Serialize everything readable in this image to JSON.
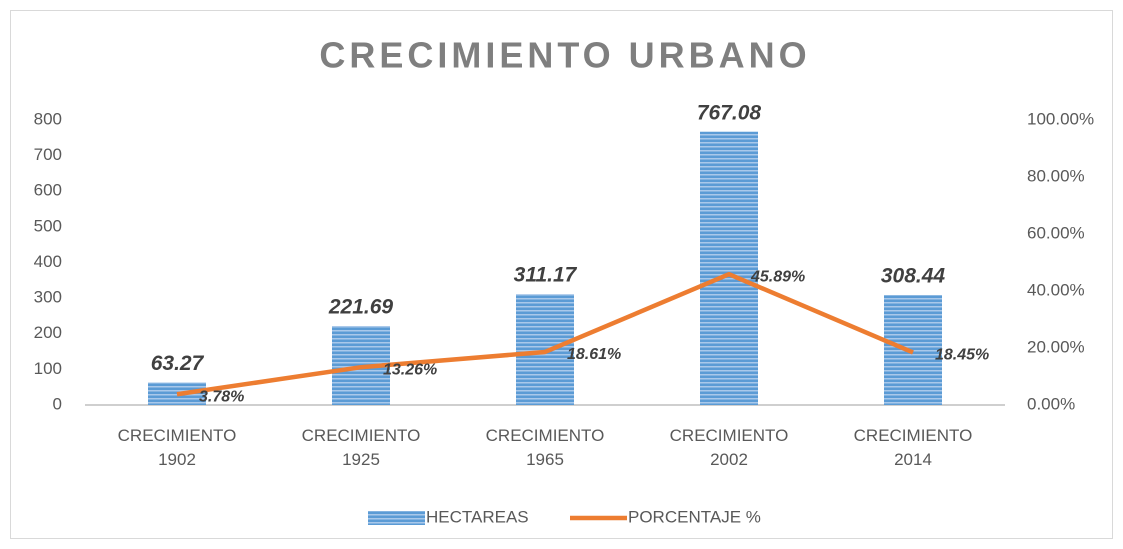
{
  "chart_data": {
    "type": "bar-line",
    "title": "CRECIMIENTO URBANO",
    "categories": [
      "CRECIMIENTO 1902",
      "CRECIMIENTO 1925",
      "CRECIMIENTO 1965",
      "CRECIMIENTO 2002",
      "CRECIMIENTO 2014"
    ],
    "series": [
      {
        "name": "HECTAREAS",
        "type": "bar",
        "color": "#5b9bd5",
        "values": [
          63.27,
          221.69,
          311.17,
          767.08,
          308.44
        ]
      },
      {
        "name": "PORCENTAJE %",
        "type": "line",
        "axis": "y2",
        "color": "#ed7d31",
        "values": [
          3.78,
          13.26,
          18.61,
          45.89,
          18.45
        ],
        "value_labels": [
          "3.78%",
          "13.26%",
          "18.61%",
          "45.89%",
          "18.45%"
        ]
      }
    ],
    "ylim": [
      0,
      800
    ],
    "yticks": [
      0,
      100,
      200,
      300,
      400,
      500,
      600,
      700,
      800
    ],
    "y2lim": [
      0,
      100
    ],
    "y2ticks": [
      {
        "value": 0,
        "label": "0.00%"
      },
      {
        "value": 20,
        "label": "20.00%"
      },
      {
        "value": 40,
        "label": "40.00%"
      },
      {
        "value": 60,
        "label": "60.00%"
      },
      {
        "value": 80,
        "label": "80.00%"
      },
      {
        "value": 100,
        "label": "100.00%"
      }
    ],
    "grid": false,
    "legend": "bottom"
  }
}
